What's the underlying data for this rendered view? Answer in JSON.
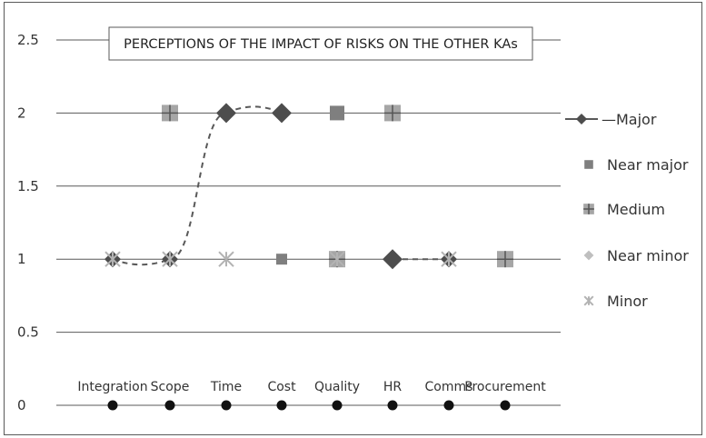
{
  "chart_data": {
    "type": "line",
    "title": "PERCEPTIONS OF THE IMPACT OF RISKS ON THE OTHER KAs",
    "xlabel": "",
    "ylabel": "",
    "categories": [
      "Integration",
      "Scope",
      "Time",
      "Cost",
      "Quality",
      "HR",
      "Comms",
      "Procurement"
    ],
    "ylim": [
      0,
      2.5
    ],
    "yticks": [
      "0",
      "0.5",
      "1",
      "1.5",
      "2",
      "2.5"
    ],
    "grid": true,
    "legend_position": "right",
    "series": [
      {
        "name": "Major",
        "marker": "diamond",
        "line": "dashed-smooth",
        "color": "#4d4d4d",
        "values": [
          1,
          1,
          2,
          2,
          null,
          1,
          1,
          null
        ]
      },
      {
        "name": "Near major",
        "marker": "square",
        "line": "none",
        "color": "#7f7f7f",
        "values": [
          null,
          null,
          null,
          1,
          2,
          null,
          null,
          null
        ]
      },
      {
        "name": "Medium",
        "marker": "plus-square",
        "line": "none",
        "color": "#a6a6a6",
        "values": [
          null,
          2,
          null,
          null,
          1,
          2,
          null,
          1
        ]
      },
      {
        "name": "Near minor",
        "marker": "diamond",
        "line": "none",
        "color": "#bfbfbf",
        "values": [
          1,
          1,
          null,
          null,
          null,
          null,
          1,
          null
        ]
      },
      {
        "name": "Minor",
        "marker": "asterisk",
        "line": "none",
        "color": "#b3b3b3",
        "values": [
          1,
          1,
          1,
          null,
          1,
          null,
          1,
          null
        ]
      }
    ],
    "baseline_markers": [
      0,
      0,
      0,
      0,
      0,
      0,
      0,
      0
    ]
  }
}
